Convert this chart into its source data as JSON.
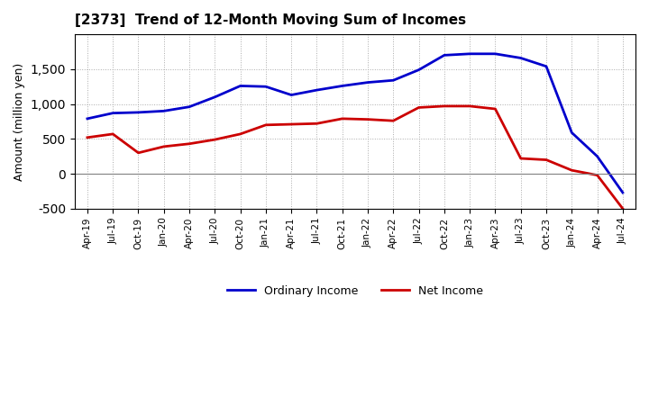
{
  "title": "[2373]  Trend of 12-Month Moving Sum of Incomes",
  "ylabel": "Amount (million yen)",
  "background_color": "#ffffff",
  "grid_color": "#aaaaaa",
  "x_labels": [
    "Apr-19",
    "Jul-19",
    "Oct-19",
    "Jan-20",
    "Apr-20",
    "Jul-20",
    "Oct-20",
    "Jan-21",
    "Apr-21",
    "Jul-21",
    "Oct-21",
    "Jan-22",
    "Apr-22",
    "Jul-22",
    "Oct-22",
    "Jan-23",
    "Apr-23",
    "Jul-23",
    "Oct-23",
    "Jan-24",
    "Apr-24",
    "Jul-24"
  ],
  "ordinary_income": [
    790,
    870,
    880,
    900,
    960,
    1100,
    1260,
    1250,
    1130,
    1200,
    1260,
    1310,
    1340,
    1490,
    1700,
    1720,
    1720,
    1660,
    1540,
    590,
    250,
    -270
  ],
  "net_income": [
    520,
    570,
    300,
    390,
    430,
    490,
    570,
    700,
    710,
    720,
    790,
    780,
    760,
    950,
    970,
    970,
    930,
    220,
    200,
    50,
    -20,
    -500
  ],
  "ylim": [
    -500,
    2000
  ],
  "yticks": [
    -500,
    0,
    500,
    1000,
    1500
  ],
  "ordinary_color": "#0000cc",
  "net_color": "#cc0000",
  "line_width": 2.0
}
